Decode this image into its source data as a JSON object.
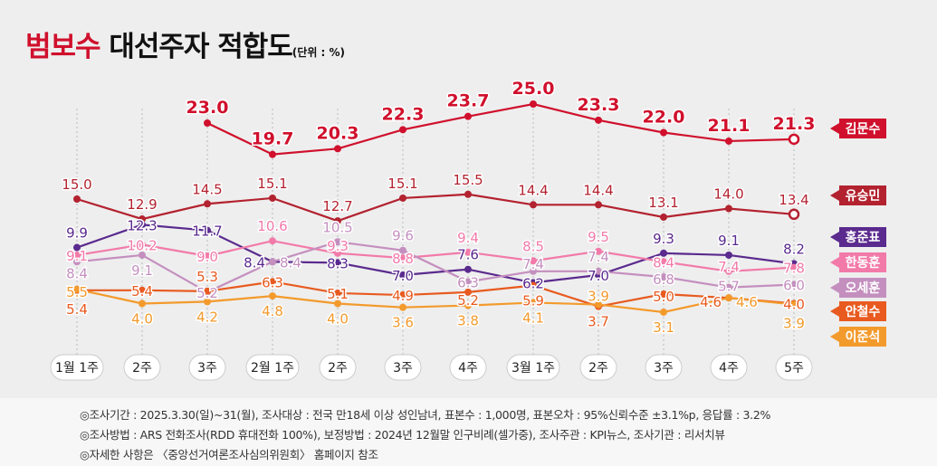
{
  "title": {
    "highlight": "범보수",
    "main": "대선주자 적합도",
    "unit": "(단위 : %)"
  },
  "chart_data": {
    "type": "line",
    "title": "범보수 대선주자 적합도",
    "ylabel": "%",
    "ylim": [
      0,
      27
    ],
    "categories": [
      "1월 1주",
      "2주",
      "3주",
      "2월 1주",
      "2주",
      "3주",
      "4주",
      "3월 1주",
      "2주",
      "3주",
      "4주",
      "5주"
    ],
    "series": [
      {
        "name": "김문수",
        "color": "#d0102c",
        "values": [
          null,
          null,
          23.0,
          19.7,
          20.3,
          22.3,
          23.7,
          25.0,
          23.3,
          22.0,
          21.1,
          21.3
        ]
      },
      {
        "name": "유승민",
        "color": "#b3222f",
        "values": [
          15.0,
          12.9,
          14.5,
          15.1,
          12.7,
          15.1,
          15.5,
          14.4,
          14.4,
          13.1,
          14.0,
          13.4
        ]
      },
      {
        "name": "홍준표",
        "color": "#5a2a8e",
        "values": [
          9.9,
          12.3,
          11.7,
          8.4,
          8.3,
          7.0,
          7.6,
          6.2,
          7.0,
          9.3,
          9.1,
          8.2
        ]
      },
      {
        "name": "한동훈",
        "color": "#f27aa9",
        "values": [
          9.1,
          10.2,
          9.0,
          10.6,
          9.3,
          8.8,
          9.4,
          8.5,
          9.5,
          8.4,
          7.4,
          7.8
        ]
      },
      {
        "name": "오세훈",
        "color": "#c48fbf",
        "values": [
          8.4,
          9.1,
          5.2,
          8.4,
          10.5,
          9.6,
          6.3,
          7.4,
          7.4,
          6.8,
          5.7,
          6.0
        ]
      },
      {
        "name": "안철수",
        "color": "#e85a1f",
        "values": [
          5.4,
          5.4,
          5.3,
          6.3,
          5.1,
          4.9,
          5.2,
          5.9,
          3.7,
          5.0,
          4.6,
          4.0
        ]
      },
      {
        "name": "이준석",
        "color": "#f39a2c",
        "values": [
          5.5,
          4.0,
          4.2,
          4.8,
          4.0,
          3.6,
          3.8,
          4.1,
          3.9,
          3.1,
          4.6,
          3.9
        ]
      }
    ],
    "grid": "vertical-dashed",
    "legend": "right"
  },
  "footer": [
    "◎조사기간 : 2025.3.30(일)~31(월), 조사대상 : 전국 만18세 이상 성인남녀, 표본수 : 1,000명, 표본오차 : 95%신뢰수준 ±3.1%p, 응답률 : 3.2%",
    "◎조사방법 : ARS 전화조사(RDD 휴대전화 100%), 보정방법 : 2024년 12월말 인구비례(셀가중), 조사주관 : KPI뉴스, 조사기관 : 리서치뷰",
    "◎자세한 사항은 〈중앙선거여론조사심의위원회〉 홈페이지 참조"
  ]
}
